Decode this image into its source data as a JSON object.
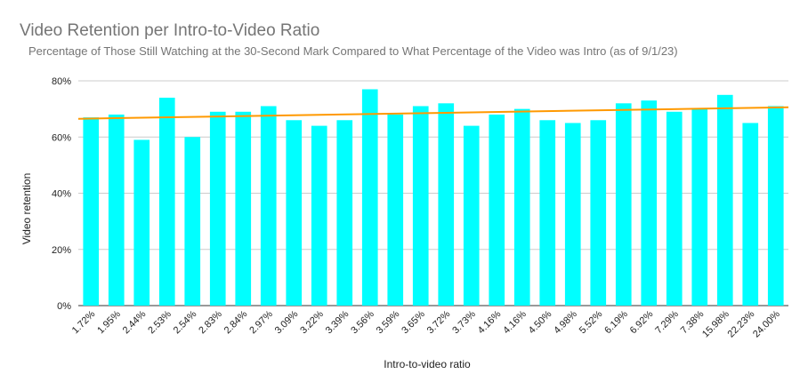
{
  "chart_data": {
    "type": "bar",
    "title": "Video Retention per Intro-to-Video Ratio",
    "subtitle": "Percentage of Those Still Watching at the 30-Second Mark Compared to What Percentage of the Video was Intro (as of 9/1/23)",
    "xlabel": "Intro-to-video ratio",
    "ylabel": "Video retention",
    "ylim": [
      0,
      80
    ],
    "yticks": [
      "0%",
      "20%",
      "40%",
      "60%",
      "80%"
    ],
    "categories": [
      "1.72%",
      "1.95%",
      "2.44%",
      "2.53%",
      "2.54%",
      "2.83%",
      "2.84%",
      "2.97%",
      "3.09%",
      "3.22%",
      "3.39%",
      "3.56%",
      "3.59%",
      "3.65%",
      "3.72%",
      "3.73%",
      "4.16%",
      "4.16%",
      "4.50%",
      "4.98%",
      "5.52%",
      "6.19%",
      "6.92%",
      "7.29%",
      "7.38%",
      "15.98%",
      "22.23%",
      "24.00%"
    ],
    "values": [
      67,
      68,
      59,
      74,
      60,
      69,
      69,
      71,
      66,
      64,
      66,
      77,
      68,
      71,
      72,
      64,
      68,
      70,
      66,
      65,
      66,
      72,
      73,
      69,
      70,
      75,
      65,
      71
    ],
    "trendline": {
      "start": 66.5,
      "end": 70.6
    },
    "grid": true,
    "legend": "none",
    "colors": {
      "bar": "#00ffff",
      "trendline": "#ff9900",
      "grid": "#cccccc",
      "title": "#757575"
    }
  }
}
